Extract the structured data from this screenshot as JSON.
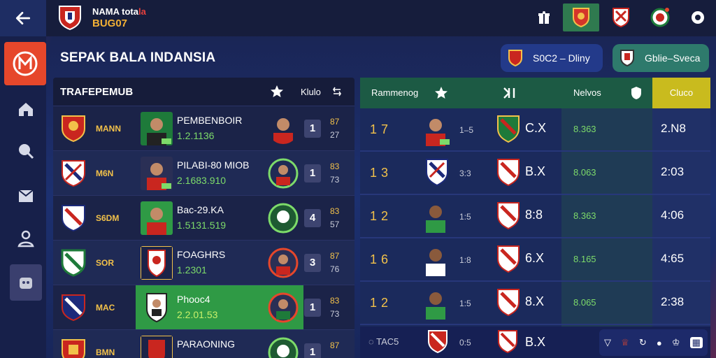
{
  "header": {
    "club_name_a": "NAMA tota",
    "club_name_b": "la",
    "club_code": "BUG07",
    "icons": [
      "back-arrow-icon",
      "club-crest-icon",
      "gift-icon",
      "crest-tab-1",
      "crest-tab-2",
      "crest-tab-3",
      "settings-gear-icon"
    ]
  },
  "sidebar": {
    "items": [
      {
        "name": "logo",
        "icon": "m-logo-icon"
      },
      {
        "name": "home",
        "icon": "house-icon"
      },
      {
        "name": "ball",
        "icon": "ball-icon"
      },
      {
        "name": "shirt",
        "icon": "shirt-icon"
      },
      {
        "name": "team",
        "icon": "team-icon"
      },
      {
        "name": "avatar",
        "icon": "avatar-icon"
      }
    ]
  },
  "page": {
    "title": "SEPAK BALA INDANSIA",
    "pill1_label": "S0C2 ‒ Dliny",
    "pill2_label": "Gblie‒Sveca"
  },
  "left_table": {
    "title": "TRAFEPEMUB",
    "col_label": "Klulo",
    "rows": [
      {
        "pos": "MANN",
        "name": "PEMBENBOIR",
        "stat": "1.2.1136",
        "num": "1",
        "a": "87",
        "b": "27"
      },
      {
        "pos": "M6N",
        "name": "PILABI-80 MIOB",
        "stat": "2.1683.910",
        "num": "1",
        "a": "83",
        "b": "73"
      },
      {
        "pos": "S6DM",
        "name": "Bac-29.KA",
        "stat": "1.5131.519",
        "num": "4",
        "a": "83",
        "b": "57"
      },
      {
        "pos": "SOR",
        "name": "FOAGHRS",
        "stat": "1.2301",
        "num": "3",
        "a": "87",
        "b": "76"
      },
      {
        "pos": "MAC",
        "name": "Phooc4",
        "stat": "2.2.01.53",
        "num": "1",
        "a": "83",
        "b": "73"
      },
      {
        "pos": "BMN",
        "name": "PARAONING",
        "stat": "",
        "num": "1",
        "a": "87",
        "b": ""
      }
    ]
  },
  "right_table": {
    "col1": "Rammenog",
    "col2": "Nelvos",
    "col3": "Cluco",
    "rows": [
      {
        "rank": "17",
        "time": "1‒5",
        "score": "C.X",
        "val": "8.363",
        "gold": "2.N8"
      },
      {
        "rank": "13",
        "time": "3:3",
        "score": "B.X",
        "val": "8.063",
        "gold": "2:03"
      },
      {
        "rank": "12",
        "time": "1:5",
        "score": "8:8",
        "val": "8.363",
        "gold": "4:06"
      },
      {
        "rank": "16",
        "time": "1:8",
        "score": "6.X",
        "val": "8.165",
        "gold": "4:65"
      },
      {
        "rank": "12",
        "time": "1:5",
        "score": "8.X",
        "val": "8.065",
        "gold": "2:38"
      }
    ],
    "footer_left": "TAC5",
    "footer_time": "0:5",
    "footer_score": "B.X"
  },
  "colors": {
    "accent_red": "#e6472b",
    "gold": "#c9bb1e",
    "green_header": "#1c5a44",
    "stat_green": "#7ddb6a"
  }
}
